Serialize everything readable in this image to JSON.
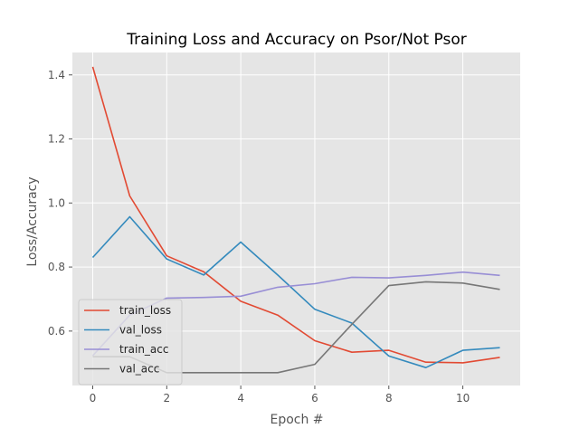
{
  "chart_data": {
    "type": "line",
    "title": "Training Loss and Accuracy on Psor/Not Psor",
    "xlabel": "Epoch #",
    "ylabel": "Loss/Accuracy",
    "xlim": [
      -0.55,
      11.55
    ],
    "ylim": [
      0.43,
      1.47
    ],
    "xticks": [
      0,
      2,
      4,
      6,
      8,
      10
    ],
    "yticks": [
      0.6,
      0.8,
      1.0,
      1.2,
      1.4
    ],
    "xtick_labels": [
      "0",
      "2",
      "4",
      "6",
      "8",
      "10"
    ],
    "ytick_labels": [
      "0.6",
      "0.8",
      "1.0",
      "1.2",
      "1.4"
    ],
    "grid": true,
    "style": "ggplot",
    "legend_position": "lower-left",
    "x": [
      0,
      1,
      2,
      3,
      4,
      5,
      6,
      7,
      8,
      9,
      10,
      11
    ],
    "series": [
      {
        "name": "train_loss",
        "color": "#e24a33",
        "values": [
          1.425,
          1.022,
          0.835,
          0.785,
          0.693,
          0.65,
          0.57,
          0.534,
          0.54,
          0.503,
          0.501,
          0.518
        ]
      },
      {
        "name": "val_loss",
        "color": "#348abd",
        "values": [
          0.83,
          0.957,
          0.825,
          0.775,
          0.878,
          0.775,
          0.668,
          0.625,
          0.522,
          0.486,
          0.54,
          0.548
        ]
      },
      {
        "name": "train_acc",
        "color": "#988ed5",
        "values": [
          0.523,
          0.65,
          0.703,
          0.705,
          0.709,
          0.737,
          0.748,
          0.768,
          0.766,
          0.774,
          0.784,
          0.774
        ]
      },
      {
        "name": "val_acc",
        "color": "#777777",
        "values": [
          0.52,
          0.52,
          0.47,
          0.47,
          0.47,
          0.47,
          0.496,
          0.621,
          0.742,
          0.754,
          0.75,
          0.73
        ]
      }
    ]
  }
}
